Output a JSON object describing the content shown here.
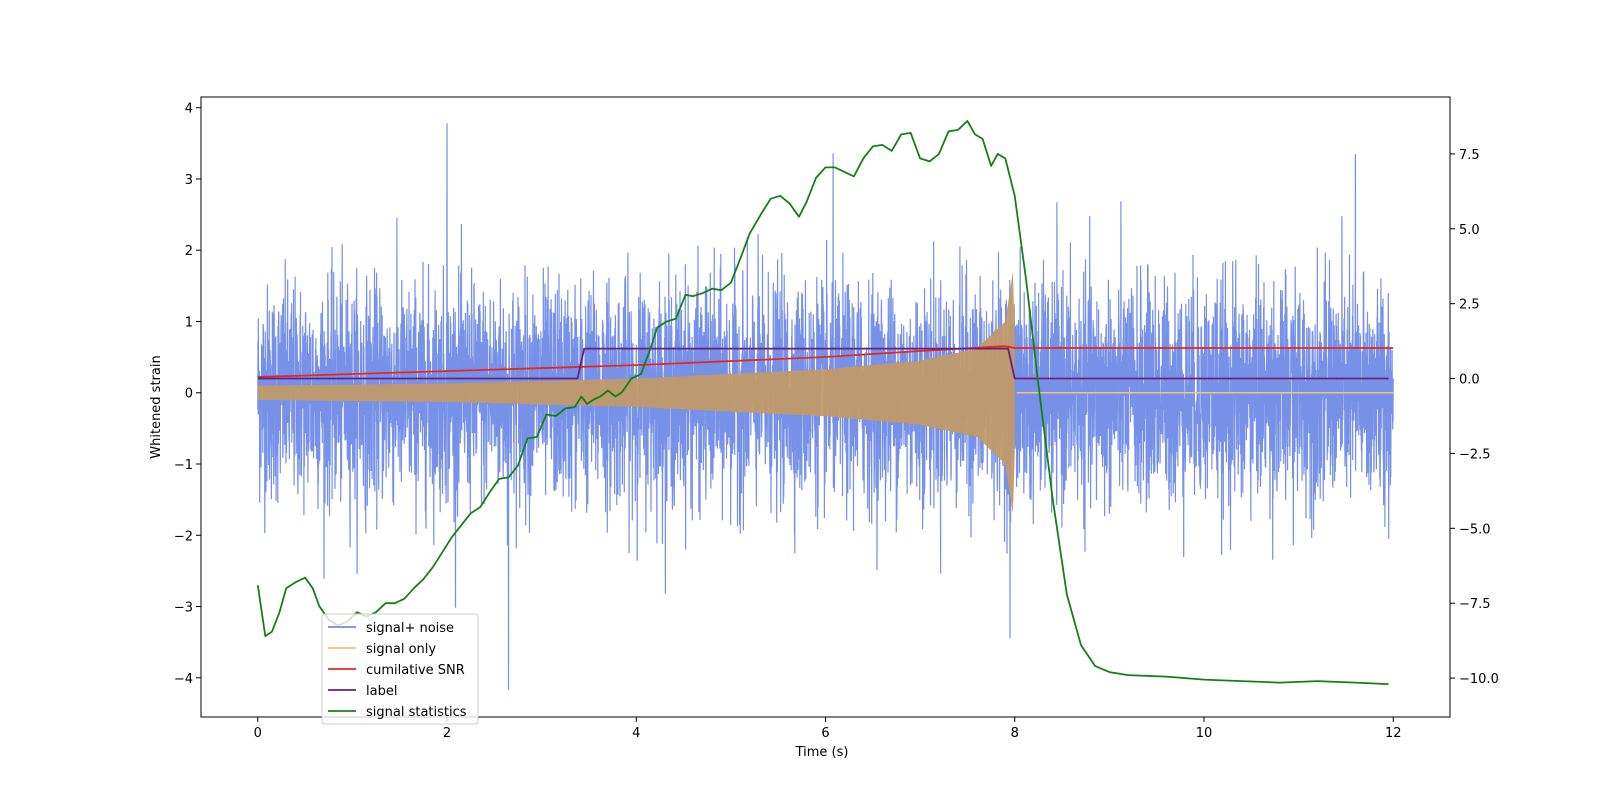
{
  "chart_data": {
    "type": "line",
    "title": "",
    "xlabel": "Time (s)",
    "ylabel": "Whitened strain",
    "y2label": "",
    "xlim": [
      -0.6,
      12.6
    ],
    "ylim": [
      -4.55,
      4.15
    ],
    "y2lim": [
      -11.3,
      9.4
    ],
    "x_ticks": [
      0,
      2,
      4,
      6,
      8,
      10,
      12
    ],
    "y_ticks": [
      -4,
      -3,
      -2,
      -1,
      0,
      1,
      2,
      3,
      4
    ],
    "y2_ticks": [
      -10.0,
      -7.5,
      -5.0,
      -2.5,
      0.0,
      2.5,
      5.0,
      7.5
    ],
    "legend_position": "lower-left",
    "series": [
      {
        "name": "signal+ noise",
        "axis": "left",
        "color": "#6f8be6",
        "description_values": "Gaussian-like noise spanning 0 to 12 s with typical amplitude about ±1.5 and peaks up to 3.8 and down to -4.2; notable peaks: (2.0, 3.78), (6.08, 3.36), (11.6, 3.35), (2.65, -4.17), (7.95, -3.45)",
        "noise_sigma": 0.75,
        "x_range": [
          0,
          12
        ]
      },
      {
        "name": "signal only",
        "axis": "left",
        "color": "#f5c27a",
        "description_values": "Chirp from 0 s to 8 s, envelope amplitude grows from about 0.1 to 1.7 near merger at 8 s, then near zero until 12 s",
        "x_range": [
          0,
          12
        ],
        "envelope_points": [
          [
            0,
            0.1
          ],
          [
            2,
            0.13
          ],
          [
            4,
            0.2
          ],
          [
            6,
            0.33
          ],
          [
            7,
            0.45
          ],
          [
            7.6,
            0.62
          ],
          [
            7.9,
            1.0
          ],
          [
            7.98,
            1.7
          ],
          [
            8.02,
            0.02
          ],
          [
            12,
            0.02
          ]
        ]
      },
      {
        "name": "cumilative SNR",
        "axis": "right",
        "color": "#e8261c",
        "points": [
          [
            0,
            0.05
          ],
          [
            2,
            0.25
          ],
          [
            4,
            0.45
          ],
          [
            6,
            0.72
          ],
          [
            7,
            0.92
          ],
          [
            7.9,
            1.08
          ],
          [
            8.0,
            1.02
          ],
          [
            12,
            1.02
          ]
        ]
      },
      {
        "name": "label",
        "axis": "right",
        "color": "#6b1f7b",
        "points": [
          [
            0,
            0.0
          ],
          [
            3.38,
            0.0
          ],
          [
            3.45,
            1.0
          ],
          [
            7.93,
            1.0
          ],
          [
            8.0,
            0.0
          ],
          [
            11.95,
            0.0
          ]
        ]
      },
      {
        "name": "signal statistics",
        "axis": "right",
        "color": "#168016",
        "points": [
          [
            0.0,
            -6.9
          ],
          [
            0.08,
            -8.6
          ],
          [
            0.15,
            -8.45
          ],
          [
            0.23,
            -7.8
          ],
          [
            0.3,
            -7.0
          ],
          [
            0.4,
            -6.8
          ],
          [
            0.5,
            -6.65
          ],
          [
            0.58,
            -7.0
          ],
          [
            0.65,
            -7.6
          ],
          [
            0.75,
            -8.05
          ],
          [
            0.85,
            -8.25
          ],
          [
            0.95,
            -8.1
          ],
          [
            1.05,
            -7.8
          ],
          [
            1.15,
            -7.95
          ],
          [
            1.25,
            -7.8
          ],
          [
            1.35,
            -7.5
          ],
          [
            1.45,
            -7.5
          ],
          [
            1.55,
            -7.35
          ],
          [
            1.65,
            -7.0
          ],
          [
            1.75,
            -6.7
          ],
          [
            1.85,
            -6.3
          ],
          [
            1.95,
            -5.8
          ],
          [
            2.05,
            -5.3
          ],
          [
            2.15,
            -4.9
          ],
          [
            2.25,
            -4.5
          ],
          [
            2.35,
            -4.3
          ],
          [
            2.45,
            -3.8
          ],
          [
            2.55,
            -3.35
          ],
          [
            2.65,
            -3.3
          ],
          [
            2.75,
            -2.9
          ],
          [
            2.85,
            -2.0
          ],
          [
            2.95,
            -1.95
          ],
          [
            3.05,
            -1.2
          ],
          [
            3.15,
            -1.25
          ],
          [
            3.25,
            -1.0
          ],
          [
            3.35,
            -0.95
          ],
          [
            3.42,
            -0.6
          ],
          [
            3.48,
            -0.85
          ],
          [
            3.55,
            -0.7
          ],
          [
            3.62,
            -0.6
          ],
          [
            3.7,
            -0.4
          ],
          [
            3.78,
            -0.6
          ],
          [
            3.85,
            -0.45
          ],
          [
            3.95,
            0.0
          ],
          [
            4.05,
            0.15
          ],
          [
            4.15,
            1.0
          ],
          [
            4.22,
            1.7
          ],
          [
            4.32,
            1.9
          ],
          [
            4.42,
            2.0
          ],
          [
            4.52,
            2.8
          ],
          [
            4.6,
            2.75
          ],
          [
            4.7,
            2.85
          ],
          [
            4.8,
            3.0
          ],
          [
            4.9,
            2.95
          ],
          [
            5.0,
            3.2
          ],
          [
            5.1,
            4.0
          ],
          [
            5.2,
            4.85
          ],
          [
            5.32,
            5.5
          ],
          [
            5.42,
            6.0
          ],
          [
            5.52,
            6.1
          ],
          [
            5.62,
            5.85
          ],
          [
            5.72,
            5.4
          ],
          [
            5.8,
            5.9
          ],
          [
            5.9,
            6.7
          ],
          [
            6.0,
            7.05
          ],
          [
            6.1,
            7.05
          ],
          [
            6.2,
            6.9
          ],
          [
            6.3,
            6.75
          ],
          [
            6.4,
            7.35
          ],
          [
            6.5,
            7.75
          ],
          [
            6.6,
            7.8
          ],
          [
            6.7,
            7.6
          ],
          [
            6.8,
            8.15
          ],
          [
            6.9,
            8.2
          ],
          [
            7.0,
            7.35
          ],
          [
            7.1,
            7.25
          ],
          [
            7.2,
            7.5
          ],
          [
            7.3,
            8.25
          ],
          [
            7.4,
            8.3
          ],
          [
            7.5,
            8.6
          ],
          [
            7.58,
            8.15
          ],
          [
            7.66,
            8.0
          ],
          [
            7.75,
            7.1
          ],
          [
            7.82,
            7.5
          ],
          [
            7.9,
            7.35
          ],
          [
            8.0,
            6.1
          ],
          [
            8.12,
            3.3
          ],
          [
            8.25,
            -0.2
          ],
          [
            8.4,
            -4.0
          ],
          [
            8.55,
            -7.2
          ],
          [
            8.7,
            -8.9
          ],
          [
            8.85,
            -9.6
          ],
          [
            9.0,
            -9.8
          ],
          [
            9.2,
            -9.9
          ],
          [
            9.6,
            -9.95
          ],
          [
            10.0,
            -10.05
          ],
          [
            10.4,
            -10.1
          ],
          [
            10.8,
            -10.15
          ],
          [
            11.2,
            -10.1
          ],
          [
            11.6,
            -10.15
          ],
          [
            11.95,
            -10.2
          ]
        ]
      }
    ]
  }
}
